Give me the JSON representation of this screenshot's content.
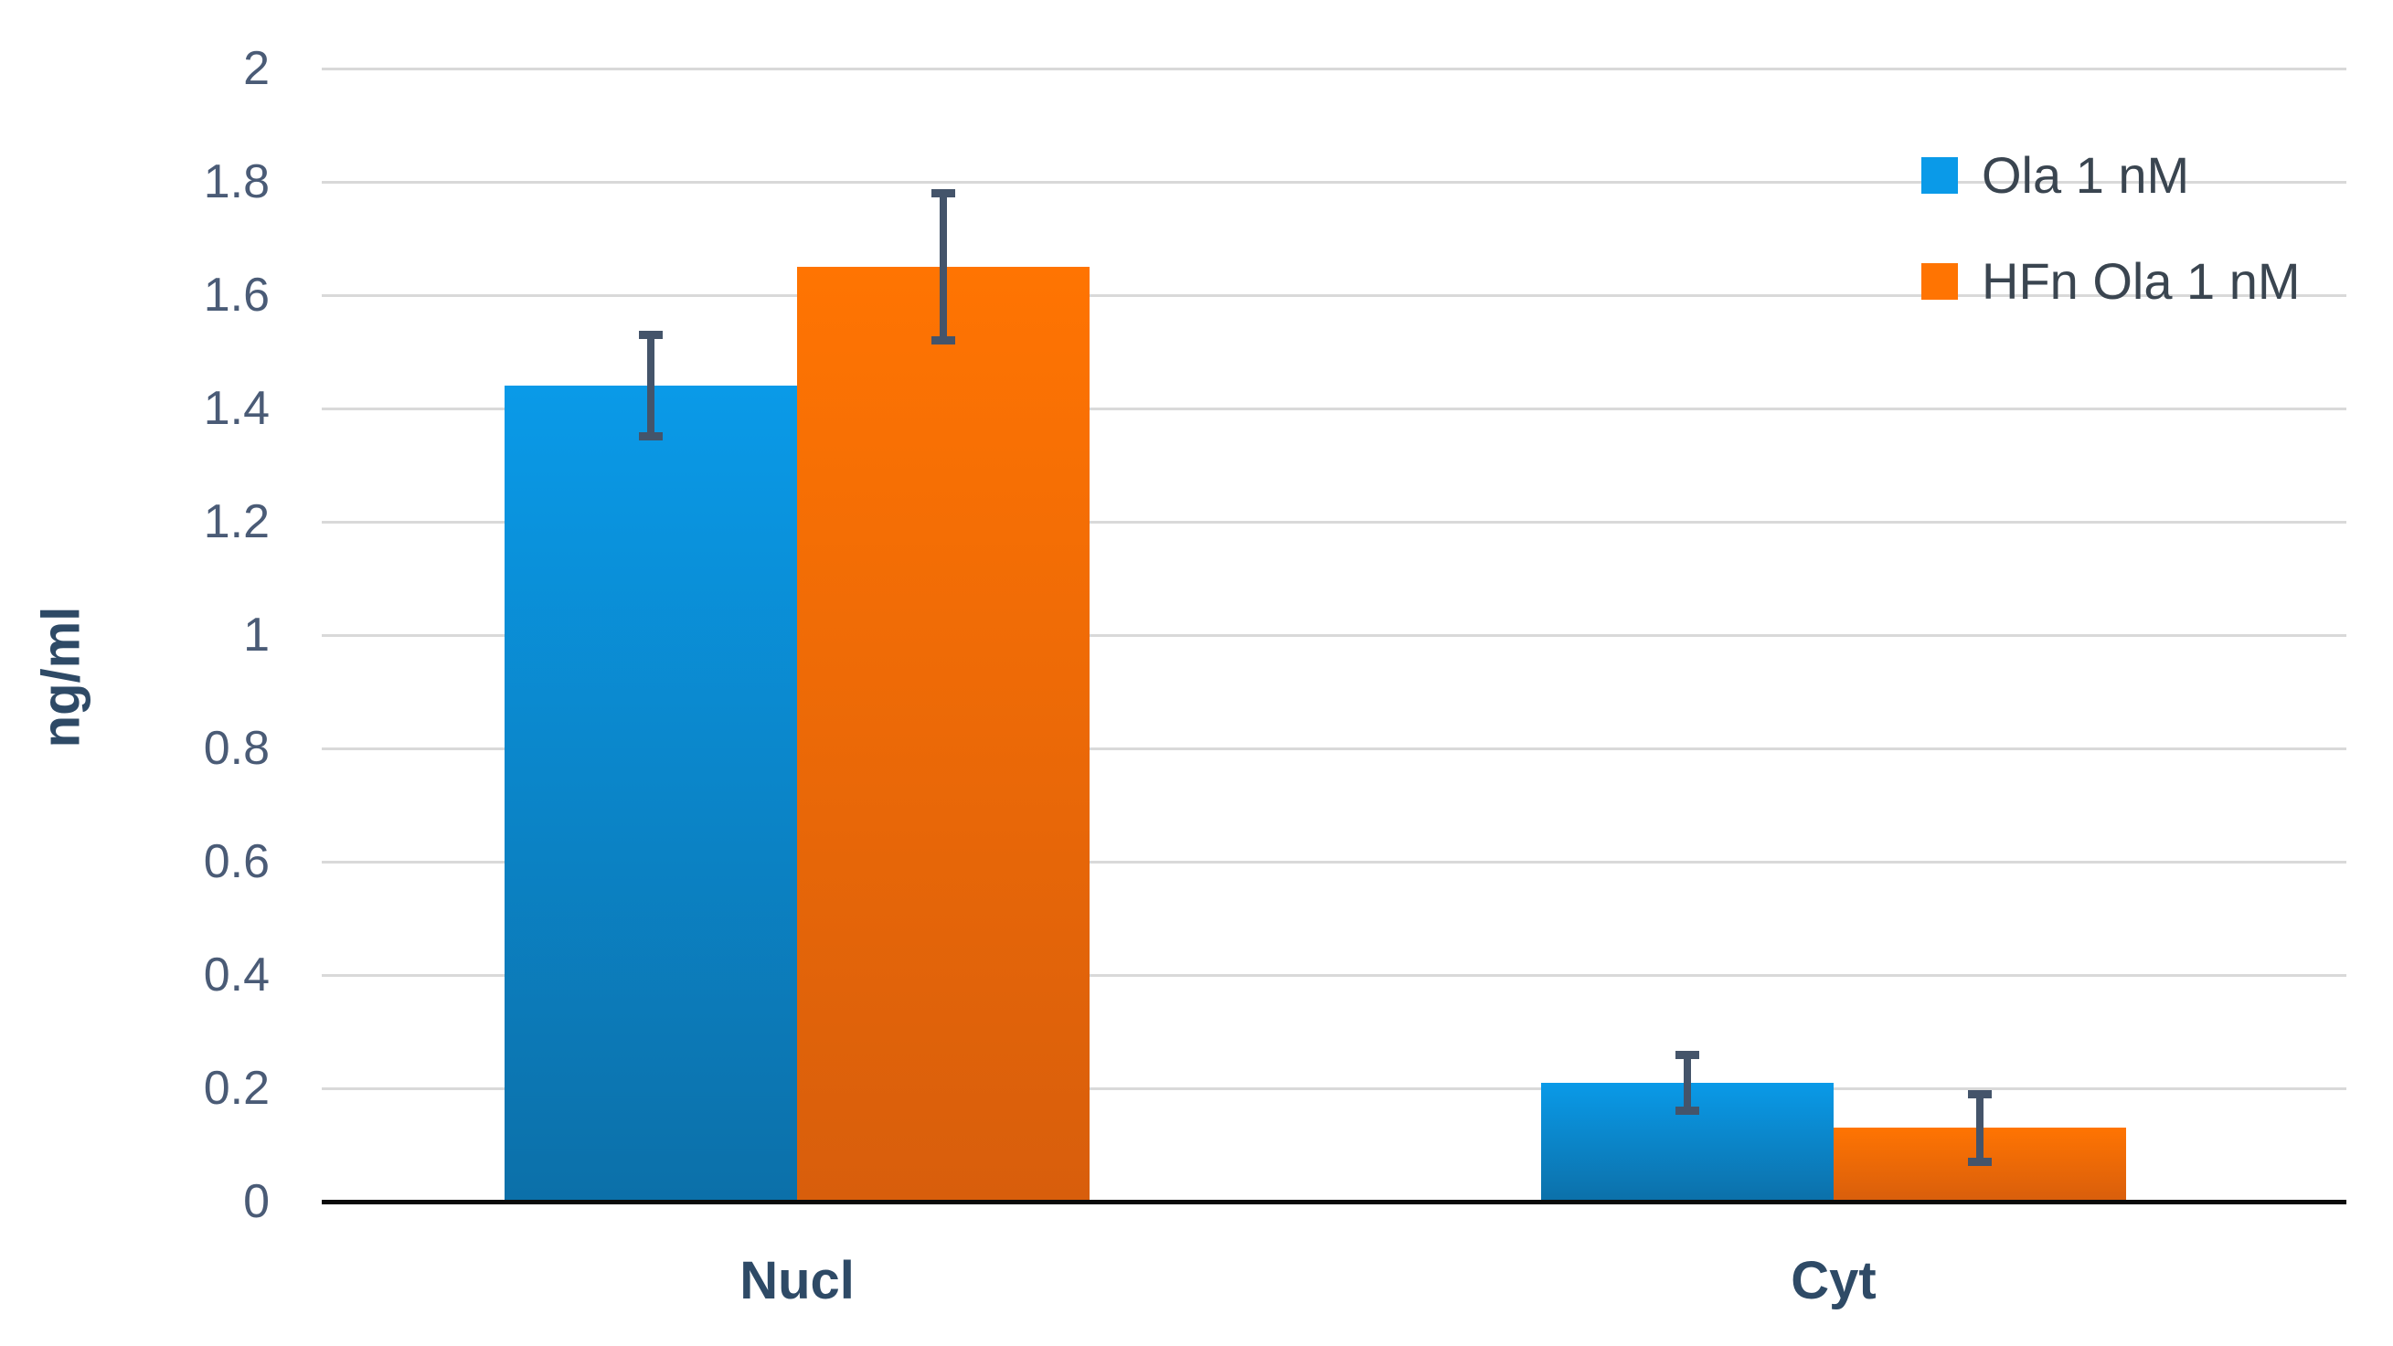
{
  "chart_data": {
    "type": "bar",
    "categories": [
      "Nucl",
      "Cyt"
    ],
    "series": [
      {
        "name": "Ola 1 nM",
        "values": [
          1.44,
          0.21
        ],
        "error_bars": [
          0.09,
          0.05
        ],
        "color": "#0A9AE8",
        "color_gradient_bottom": "#0C70A9"
      },
      {
        "name": "HFn Ola 1 nM",
        "values": [
          1.65,
          0.13
        ],
        "error_bars": [
          0.13,
          0.06
        ],
        "color": "#FF7402",
        "color_gradient_bottom": "#D85E0C"
      }
    ],
    "xlabel": "",
    "ylabel": "ng/ml",
    "ylim": [
      0,
      2
    ],
    "ytick_values": [
      0,
      0.2,
      0.4,
      0.6,
      0.8,
      1,
      1.2,
      1.4,
      1.6,
      1.8,
      2
    ],
    "ytick_labels": [
      "0",
      "0.2",
      "0.4",
      "0.6",
      "0.8",
      "1",
      "1.2",
      "1.4",
      "1.6",
      "1.8",
      "2"
    ],
    "grid": true,
    "legend_position": "top-right",
    "colors": {
      "error_bar": "#44546A",
      "tick_label": "#4A5B76",
      "axis_title": "#2E4A66",
      "category_label": "#2E4A66",
      "legend_text": "#3A4550",
      "gridline": "#D9D9D9",
      "axis_line": "#0A0A0A",
      "background": "#FFFFFF"
    }
  }
}
